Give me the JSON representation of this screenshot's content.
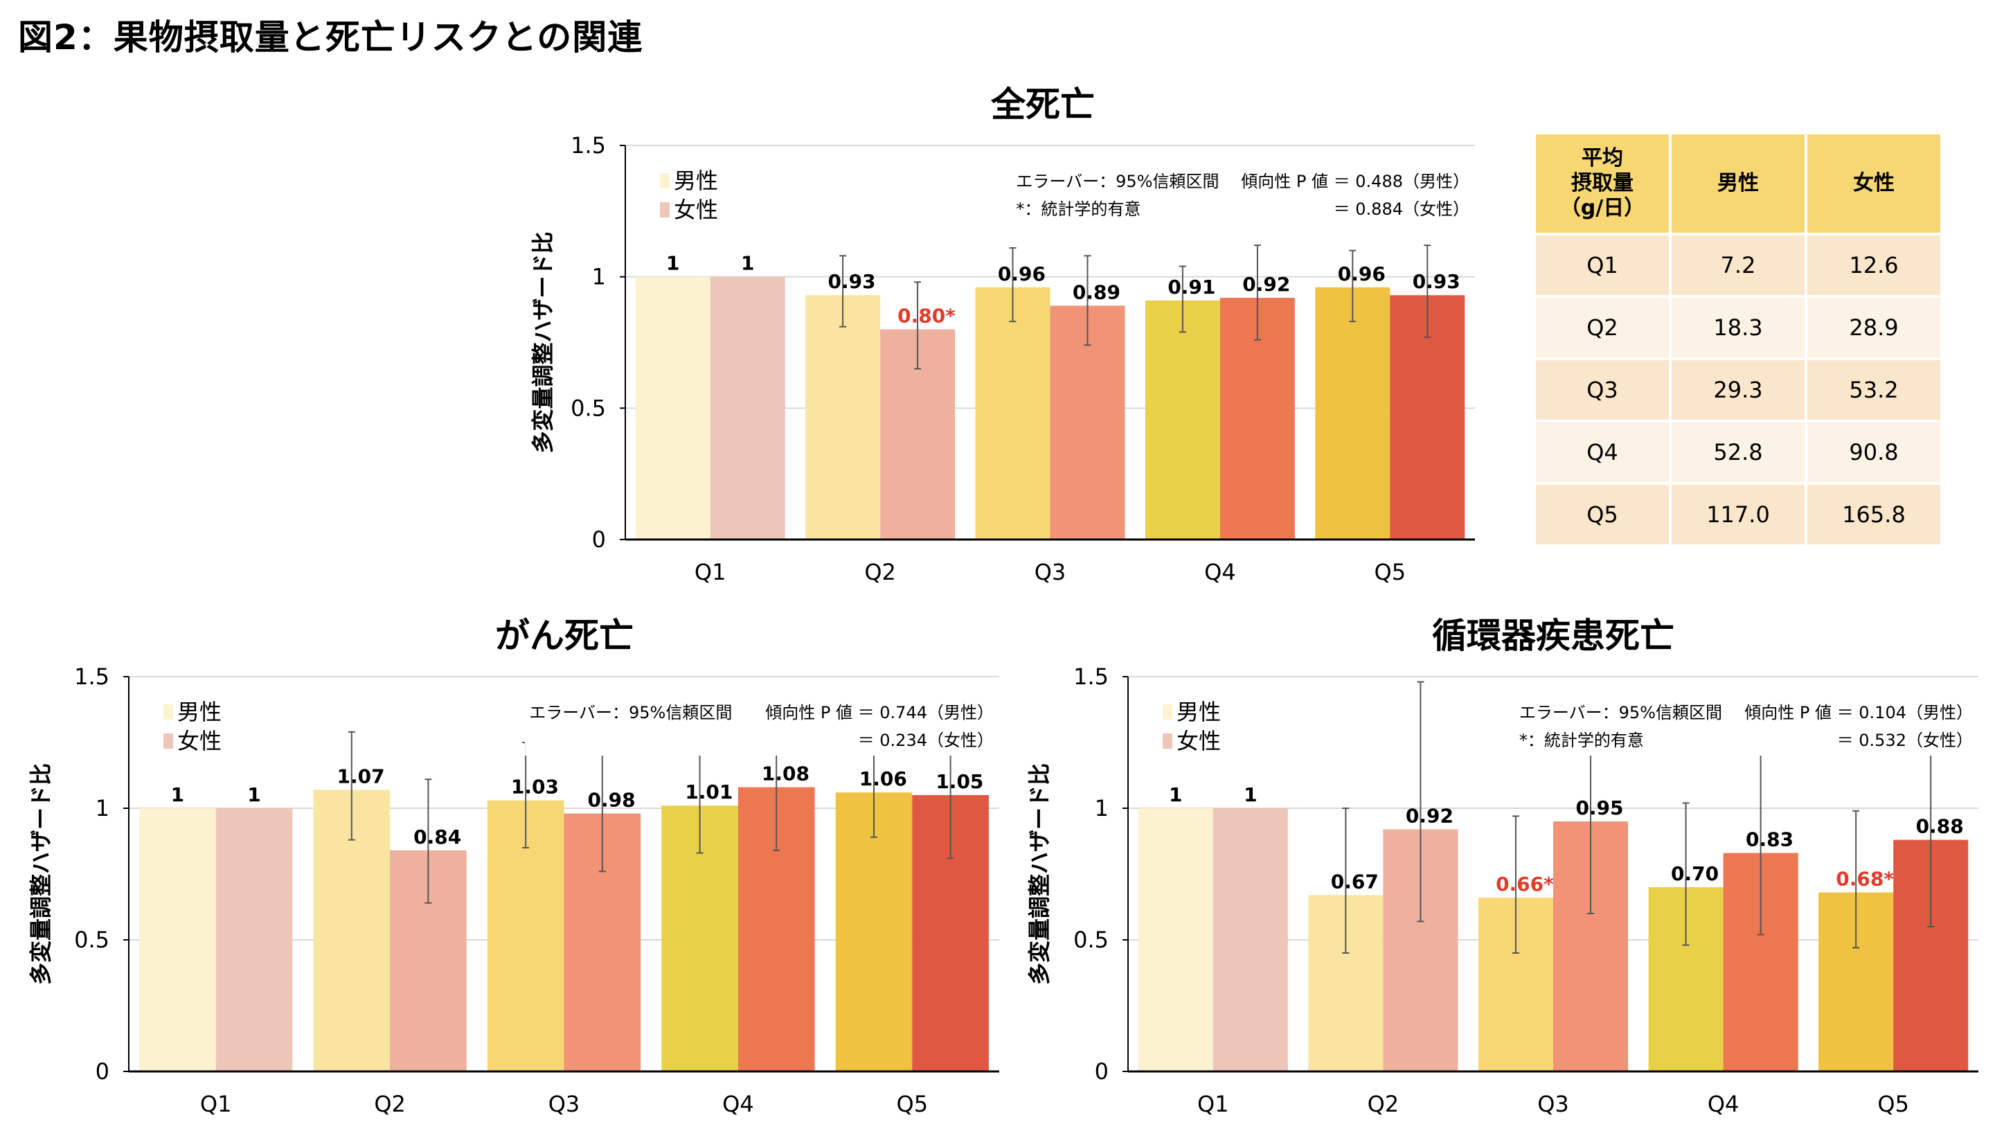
{
  "figure_title": "図2：果物摂取量と死亡リスクとの関連",
  "intake_table": {
    "header": [
      "平均\n摂取量\n（g/日）",
      "男性",
      "女性"
    ],
    "rows": [
      {
        "q": "Q1",
        "male": "7.2",
        "female": "12.6"
      },
      {
        "q": "Q2",
        "male": "18.3",
        "female": "28.9"
      },
      {
        "q": "Q3",
        "male": "29.3",
        "female": "53.2"
      },
      {
        "q": "Q4",
        "male": "52.8",
        "female": "90.8"
      },
      {
        "q": "Q5",
        "male": "117.0",
        "female": "165.8"
      }
    ],
    "colors": {
      "header": "#f7d774",
      "row_odd": "#fae6cb",
      "row_even": "#fcf3e6"
    }
  },
  "chart_data": [
    {
      "type": "bar",
      "title": "全死亡",
      "xlabel": "",
      "ylabel": "多変量調整ハザード比",
      "ylim": [
        0,
        1.5
      ],
      "yticks": [
        "0",
        "0.5",
        "1",
        "1.5"
      ],
      "grid": true,
      "categories": [
        "Q1",
        "Q2",
        "Q3",
        "Q4",
        "Q5"
      ],
      "legend": {
        "position": "top-left",
        "entries": [
          "男性",
          "女性"
        ]
      },
      "notes": [
        "エラーバー：95%信頼区間",
        "*：統計学的有意"
      ],
      "trend_p": [
        "傾向性 P 値 ＝ 0.488（男性）",
        "＝ 0.884（女性）"
      ],
      "series": [
        {
          "name": "男性",
          "values": [
            1,
            0.93,
            0.96,
            0.91,
            0.96
          ],
          "labels": [
            "1",
            "0.93",
            "0.96",
            "0.91",
            "0.96"
          ],
          "significant": [
            false,
            false,
            false,
            false,
            false
          ],
          "ci": [
            [
              1,
              1
            ],
            [
              0.81,
              1.08
            ],
            [
              0.83,
              1.11
            ],
            [
              0.79,
              1.04
            ],
            [
              0.83,
              1.1
            ]
          ],
          "colors": [
            "#fcf2d0",
            "#f9e4a0",
            "#f7d774",
            "#e8d048",
            "#f0c241"
          ]
        },
        {
          "name": "女性",
          "values": [
            1,
            0.8,
            0.89,
            0.92,
            0.93
          ],
          "labels": [
            "1",
            "0.80*",
            "0.89",
            "0.92",
            "0.93"
          ],
          "significant": [
            false,
            true,
            false,
            false,
            false
          ],
          "ci": [
            [
              1,
              1
            ],
            [
              0.65,
              0.98
            ],
            [
              0.74,
              1.08
            ],
            [
              0.76,
              1.12
            ],
            [
              0.77,
              1.12
            ]
          ],
          "colors": [
            "#edc6b7",
            "#efb19e",
            "#f09377",
            "#ed7750",
            "#df5841"
          ]
        }
      ]
    },
    {
      "type": "bar",
      "title": "がん死亡",
      "xlabel": "",
      "ylabel": "多変量調整ハザード比",
      "ylim": [
        0,
        1.5
      ],
      "yticks": [
        "0",
        "0.5",
        "1",
        "1.5"
      ],
      "grid": true,
      "categories": [
        "Q1",
        "Q2",
        "Q3",
        "Q4",
        "Q5"
      ],
      "legend": {
        "position": "top-left",
        "entries": [
          "男性",
          "女性"
        ]
      },
      "notes": [
        "エラーバー：95%信頼区間"
      ],
      "trend_p": [
        "傾向性 P 値 ＝ 0.744（男性）",
        "＝ 0.234（女性）"
      ],
      "series": [
        {
          "name": "男性",
          "values": [
            1,
            1.07,
            1.03,
            1.01,
            1.06
          ],
          "labels": [
            "1",
            "1.07",
            "1.03",
            "1.01",
            "1.06"
          ],
          "significant": [
            false,
            false,
            false,
            false,
            false
          ],
          "ci": [
            [
              1,
              1
            ],
            [
              0.88,
              1.29
            ],
            [
              0.85,
              1.25
            ],
            [
              0.83,
              1.21
            ],
            [
              0.89,
              1.27
            ]
          ],
          "colors": [
            "#fcf2d0",
            "#f9e4a0",
            "#f7d774",
            "#e8d048",
            "#f0c241"
          ]
        },
        {
          "name": "女性",
          "values": [
            1,
            0.84,
            0.98,
            1.08,
            1.05
          ],
          "labels": [
            "1",
            "0.84",
            "0.98",
            "1.08",
            "1.05"
          ],
          "significant": [
            false,
            false,
            false,
            false,
            false
          ],
          "ci": [
            [
              1,
              1
            ],
            [
              0.64,
              1.11
            ],
            [
              0.76,
              1.27
            ],
            [
              0.84,
              1.27
            ],
            [
              0.81,
              1.27
            ]
          ],
          "colors": [
            "#edc6b7",
            "#efb19e",
            "#f09377",
            "#ed7750",
            "#df5841"
          ]
        }
      ]
    },
    {
      "type": "bar",
      "title": "循環器疾患死亡",
      "xlabel": "",
      "ylabel": "多変量調整ハザード比",
      "ylim": [
        0,
        1.5
      ],
      "yticks": [
        "0",
        "0.5",
        "1",
        "1.5"
      ],
      "grid": true,
      "categories": [
        "Q1",
        "Q2",
        "Q3",
        "Q4",
        "Q5"
      ],
      "legend": {
        "position": "top-left",
        "entries": [
          "男性",
          "女性"
        ]
      },
      "notes": [
        "エラーバー：95%信頼区間",
        "*：統計学的有意"
      ],
      "trend_p": [
        "傾向性 P 値 ＝ 0.104（男性）",
        "＝ 0.532（女性）"
      ],
      "series": [
        {
          "name": "男性",
          "values": [
            1,
            0.67,
            0.66,
            0.7,
            0.68
          ],
          "labels": [
            "1",
            "0.67",
            "0.66*",
            "0.70",
            "0.68*"
          ],
          "significant": [
            false,
            false,
            true,
            false,
            true
          ],
          "ci": [
            [
              1,
              1
            ],
            [
              0.45,
              1.0
            ],
            [
              0.45,
              0.97
            ],
            [
              0.48,
              1.02
            ],
            [
              0.47,
              0.99
            ]
          ],
          "colors": [
            "#fcf2d0",
            "#f9e4a0",
            "#f7d774",
            "#e8d048",
            "#f0c241"
          ]
        },
        {
          "name": "女性",
          "values": [
            1,
            0.92,
            0.95,
            0.83,
            0.88
          ],
          "labels": [
            "1",
            "0.92",
            "0.95",
            "0.83",
            "0.88"
          ],
          "significant": [
            false,
            false,
            false,
            false,
            false
          ],
          "ci": [
            [
              1,
              1
            ],
            [
              0.57,
              1.48
            ],
            [
              0.6,
              1.24
            ],
            [
              0.52,
              1.23
            ],
            [
              0.55,
              1.23
            ]
          ],
          "colors": [
            "#edc6b7",
            "#efb19e",
            "#f09377",
            "#ed7750",
            "#df5841"
          ]
        }
      ]
    }
  ],
  "colors": {
    "significant_label": "#e23b2a",
    "legend_male": "#fcf2d0",
    "legend_female": "#edc6b7",
    "error_bar": "#555555",
    "gridline": "#d9d9d9"
  }
}
